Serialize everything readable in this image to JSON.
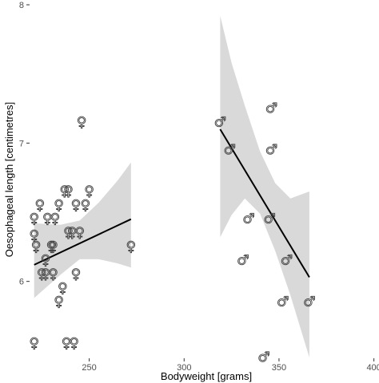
{
  "chart_data": {
    "type": "scatter",
    "title": "",
    "xlabel": "Bodyweight [grams]",
    "ylabel": "Oesophageal length [centimetres]",
    "xlim": [
      219,
      401
    ],
    "ylim": [
      5.45,
      8.0
    ],
    "xticks": [
      250,
      300,
      350,
      400
    ],
    "xtick_labels": [
      "250",
      "300",
      "350",
      "400"
    ],
    "yticks": [
      6,
      7,
      8
    ],
    "ytick_labels": [
      "6",
      "7",
      "8"
    ],
    "grid": false,
    "legend": "none",
    "colors": {
      "band": "#d9d9d9",
      "line": "#000000",
      "marker": "#404040",
      "background": "#ffffff"
    },
    "series": [
      {
        "marker": "female-symbol",
        "points": [
          {
            "x": 221,
            "y": 5.55
          },
          {
            "x": 221,
            "y": 6.33
          },
          {
            "x": 221,
            "y": 6.45
          },
          {
            "x": 222,
            "y": 6.25
          },
          {
            "x": 224,
            "y": 6.55
          },
          {
            "x": 225,
            "y": 6.05
          },
          {
            "x": 227,
            "y": 6.05
          },
          {
            "x": 227,
            "y": 6.15
          },
          {
            "x": 228,
            "y": 6.45
          },
          {
            "x": 230,
            "y": 6.25
          },
          {
            "x": 231,
            "y": 6.05
          },
          {
            "x": 231,
            "y": 6.25
          },
          {
            "x": 232,
            "y": 6.45
          },
          {
            "x": 234,
            "y": 5.85
          },
          {
            "x": 234,
            "y": 6.55
          },
          {
            "x": 236,
            "y": 5.95
          },
          {
            "x": 237,
            "y": 6.65
          },
          {
            "x": 238,
            "y": 5.55
          },
          {
            "x": 239,
            "y": 6.35
          },
          {
            "x": 239,
            "y": 6.65
          },
          {
            "x": 241,
            "y": 6.35
          },
          {
            "x": 242,
            "y": 5.55
          },
          {
            "x": 243,
            "y": 6.05
          },
          {
            "x": 243,
            "y": 6.55
          },
          {
            "x": 245,
            "y": 6.35
          },
          {
            "x": 246,
            "y": 7.15
          },
          {
            "x": 248,
            "y": 6.55
          },
          {
            "x": 250,
            "y": 6.65
          },
          {
            "x": 272,
            "y": 6.25
          }
        ]
      },
      {
        "marker": "male-symbol",
        "points": [
          {
            "x": 319,
            "y": 7.15
          },
          {
            "x": 324,
            "y": 6.95
          },
          {
            "x": 331,
            "y": 6.15
          },
          {
            "x": 334,
            "y": 6.45
          },
          {
            "x": 342,
            "y": 5.45
          },
          {
            "x": 345,
            "y": 6.45
          },
          {
            "x": 346,
            "y": 6.95
          },
          {
            "x": 346,
            "y": 7.25
          },
          {
            "x": 352,
            "y": 5.85
          },
          {
            "x": 354,
            "y": 6.15
          },
          {
            "x": 366,
            "y": 5.85
          }
        ]
      }
    ],
    "fits": [
      {
        "x": [
          221,
          272
        ],
        "y": [
          6.12,
          6.45
        ],
        "band": [
          [
            221,
            5.88,
            6.42
          ],
          [
            235,
            6.05,
            6.41
          ],
          [
            245,
            6.16,
            6.44
          ],
          [
            255,
            6.16,
            6.57
          ],
          [
            265,
            6.13,
            6.73
          ],
          [
            272,
            6.1,
            6.86
          ]
        ]
      },
      {
        "x": [
          319,
          366
        ],
        "y": [
          7.1,
          6.03
        ],
        "band": [
          [
            319,
            6.32,
            7.92
          ],
          [
            325,
            6.48,
            7.58
          ],
          [
            332,
            6.6,
            7.27
          ],
          [
            340,
            6.49,
            6.94
          ],
          [
            348,
            6.22,
            6.71
          ],
          [
            356,
            5.9,
            6.6
          ],
          [
            366,
            5.45,
            6.65
          ]
        ]
      }
    ]
  }
}
